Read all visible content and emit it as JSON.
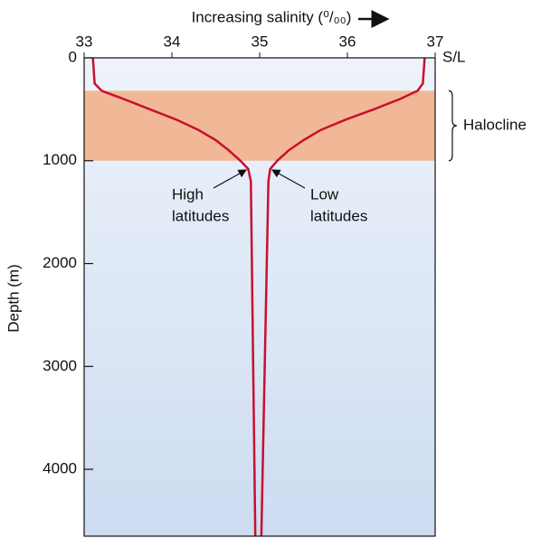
{
  "chart_data": {
    "type": "line",
    "x_label": "Increasing salinity (⁰/₀₀)",
    "y_label": "Depth (m)",
    "xlim": [
      33,
      37
    ],
    "xticks": [
      33,
      34,
      35,
      36,
      37
    ],
    "ylim": [
      0,
      4650
    ],
    "yticks": [
      0,
      1000,
      2000,
      3000,
      4000
    ],
    "y_inverted": true,
    "series": [
      {
        "name": "High latitudes",
        "color": "#c8102e",
        "y": [
          0,
          250,
          320,
          400,
          500,
          600,
          700,
          800,
          900,
          1000,
          1080,
          1200,
          4650
        ],
        "x": [
          33.1,
          33.12,
          33.2,
          33.45,
          33.75,
          34.05,
          34.3,
          34.5,
          34.65,
          34.78,
          34.87,
          34.9,
          34.95
        ]
      },
      {
        "name": "Low latitudes",
        "color": "#c8102e",
        "y": [
          0,
          250,
          320,
          400,
          500,
          600,
          700,
          800,
          900,
          1000,
          1080,
          1200,
          4650
        ],
        "x": [
          36.88,
          36.86,
          36.8,
          36.6,
          36.3,
          35.98,
          35.7,
          35.5,
          35.33,
          35.2,
          35.12,
          35.1,
          35.02
        ]
      }
    ],
    "band": {
      "label": "Halocline",
      "range": [
        320,
        1000
      ],
      "color": "#f0b896"
    },
    "annotations": [
      {
        "lines": [
          "High",
          "latitudes"
        ]
      },
      {
        "lines": [
          "Low",
          "latitudes"
        ]
      },
      {
        "text": "S/L"
      }
    ]
  }
}
